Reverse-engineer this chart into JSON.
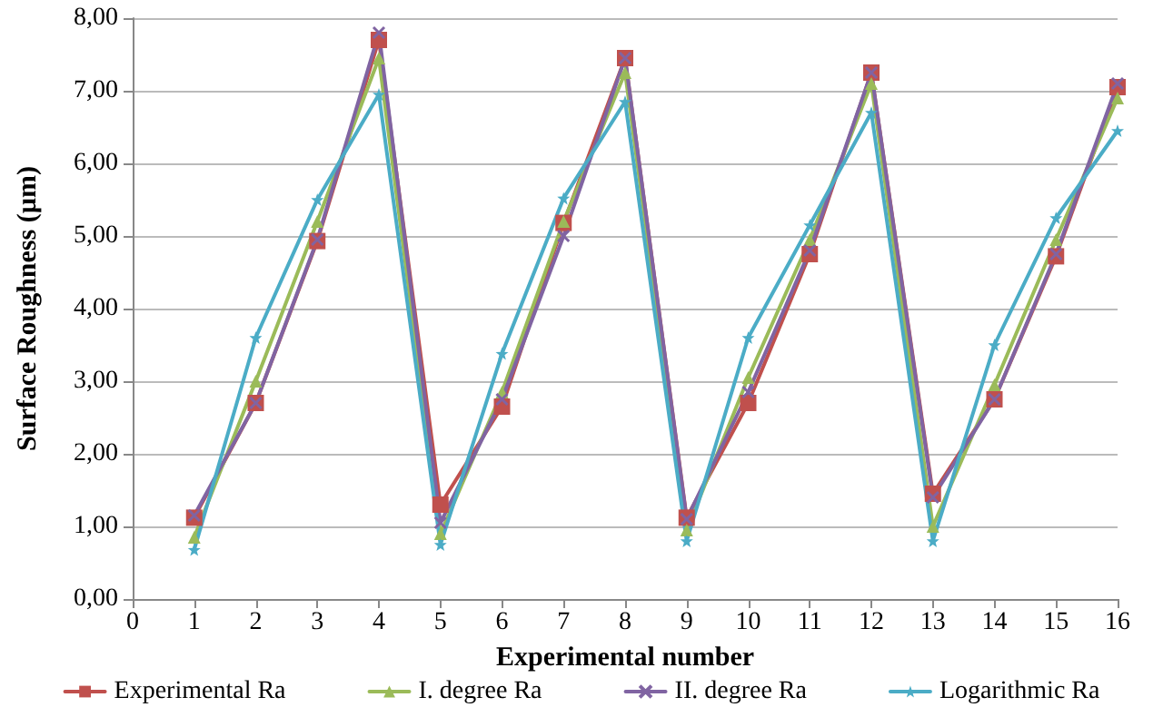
{
  "chart_data": {
    "type": "line",
    "xlabel": "Experimental number",
    "ylabel": "Surface Roughness (µm)",
    "x": [
      1,
      2,
      3,
      4,
      5,
      6,
      7,
      8,
      9,
      10,
      11,
      12,
      13,
      14,
      15,
      16
    ],
    "series": [
      {
        "name": "Experimental Ra",
        "color": "#c0504d",
        "marker": "square",
        "values": [
          1.12,
          2.7,
          4.93,
          7.7,
          1.3,
          2.65,
          5.18,
          7.45,
          1.12,
          2.7,
          4.75,
          7.25,
          1.45,
          2.75,
          4.72,
          7.05
        ]
      },
      {
        "name": "I. degree Ra",
        "color": "#9bbb59",
        "marker": "triangle",
        "values": [
          0.85,
          3.0,
          5.2,
          7.45,
          0.9,
          2.85,
          5.2,
          7.25,
          0.95,
          3.05,
          4.95,
          7.1,
          1.0,
          2.95,
          4.95,
          6.9
        ]
      },
      {
        "name": "II. degree Ra",
        "color": "#8064a2",
        "marker": "cross",
        "values": [
          1.15,
          2.7,
          4.95,
          7.8,
          1.05,
          2.75,
          5.0,
          7.45,
          1.1,
          2.85,
          4.8,
          7.25,
          1.4,
          2.75,
          4.75,
          7.1
        ]
      },
      {
        "name": "Logarithmic Ra",
        "color": "#4bacc6",
        "marker": "star",
        "values": [
          0.68,
          3.6,
          5.5,
          6.95,
          0.75,
          3.38,
          5.52,
          6.85,
          0.8,
          3.6,
          5.15,
          6.7,
          0.8,
          3.5,
          5.25,
          6.45
        ]
      }
    ],
    "xlim": [
      0,
      16
    ],
    "xticks": [
      0,
      1,
      2,
      3,
      4,
      5,
      6,
      7,
      8,
      9,
      10,
      11,
      12,
      13,
      14,
      15,
      16
    ],
    "ylim": [
      0,
      8
    ],
    "yticks": [
      {
        "value": 0,
        "label": "0,00"
      },
      {
        "value": 1,
        "label": "1,00"
      },
      {
        "value": 2,
        "label": "2,00"
      },
      {
        "value": 3,
        "label": "3,00"
      },
      {
        "value": 4,
        "label": "4,00"
      },
      {
        "value": 5,
        "label": "5,00"
      },
      {
        "value": 6,
        "label": "6,00"
      },
      {
        "value": 7,
        "label": "7,00"
      },
      {
        "value": 8,
        "label": "8,00"
      }
    ],
    "grid": "y",
    "legend": "bottom",
    "line_style": "solid"
  }
}
